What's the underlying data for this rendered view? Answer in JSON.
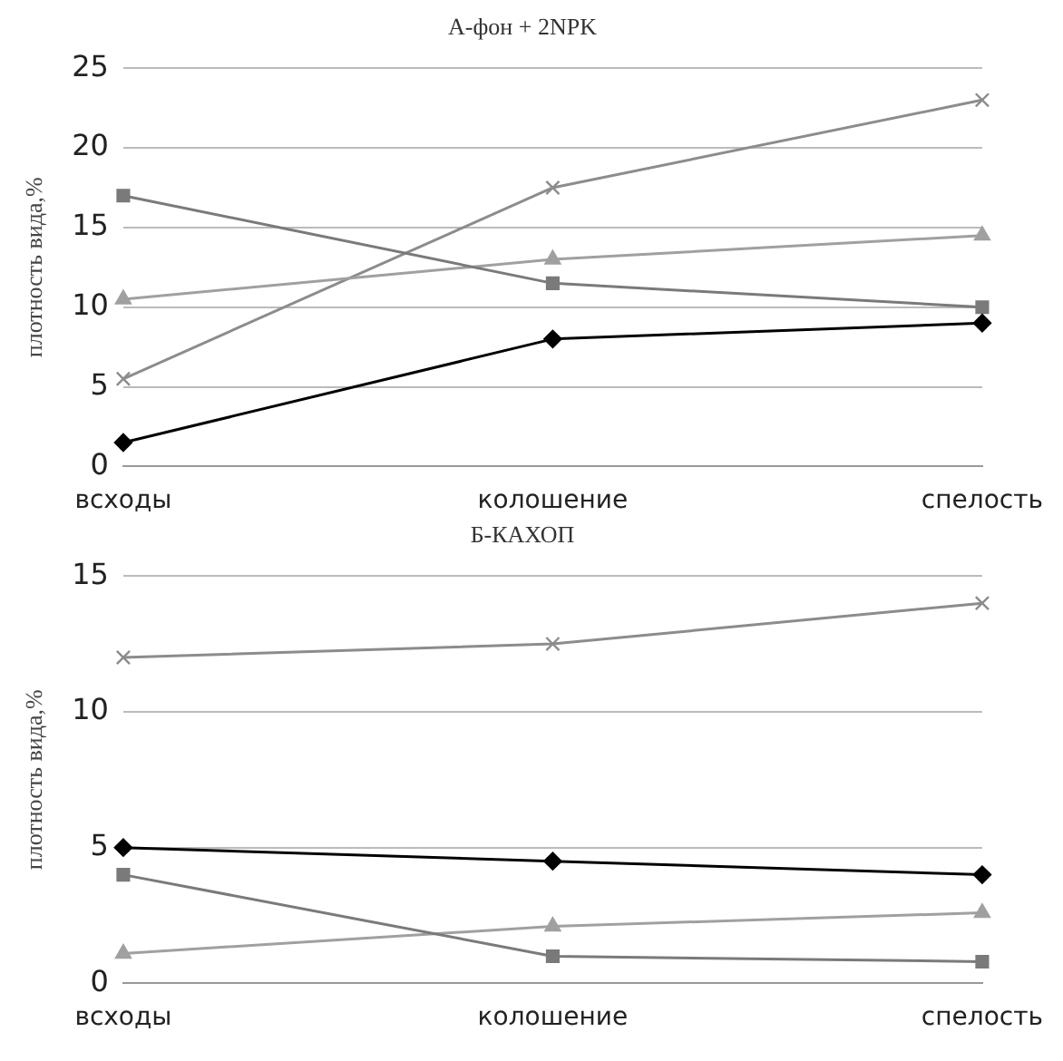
{
  "chart_data": [
    {
      "type": "line",
      "title": "А-фон + 2NPK",
      "ylabel": "плотность вида,%",
      "categories": [
        "всходы",
        "колошение",
        "спелость"
      ],
      "ylim": [
        0,
        25
      ],
      "yticks": [
        0,
        5,
        10,
        15,
        20,
        25
      ],
      "grid": "y",
      "series": [
        {
          "color": "#000000",
          "marker": "diamond",
          "values": [
            1.5,
            8,
            9
          ]
        },
        {
          "color": "#7a7a7a",
          "marker": "square",
          "values": [
            17,
            11.5,
            10
          ]
        },
        {
          "color": "#a0a0a0",
          "marker": "triangle",
          "values": [
            10.5,
            13,
            14.5
          ]
        },
        {
          "color": "#8c8c8c",
          "marker": "cross",
          "values": [
            5.5,
            17.5,
            23
          ]
        }
      ]
    },
    {
      "type": "line",
      "title": "Б-КАХОП",
      "ylabel": "плотность вида,%",
      "categories": [
        "всходы",
        "колошение",
        "спелость"
      ],
      "ylim": [
        0,
        15
      ],
      "yticks": [
        0,
        5,
        10,
        15
      ],
      "grid": "y",
      "series": [
        {
          "color": "#000000",
          "marker": "diamond",
          "values": [
            5,
            4.5,
            4
          ]
        },
        {
          "color": "#7a7a7a",
          "marker": "square",
          "values": [
            4,
            1,
            0.8
          ]
        },
        {
          "color": "#a0a0a0",
          "marker": "triangle",
          "values": [
            1.1,
            2.1,
            2.6
          ]
        },
        {
          "color": "#8c8c8c",
          "marker": "cross",
          "values": [
            12,
            12.5,
            14
          ]
        }
      ]
    }
  ]
}
